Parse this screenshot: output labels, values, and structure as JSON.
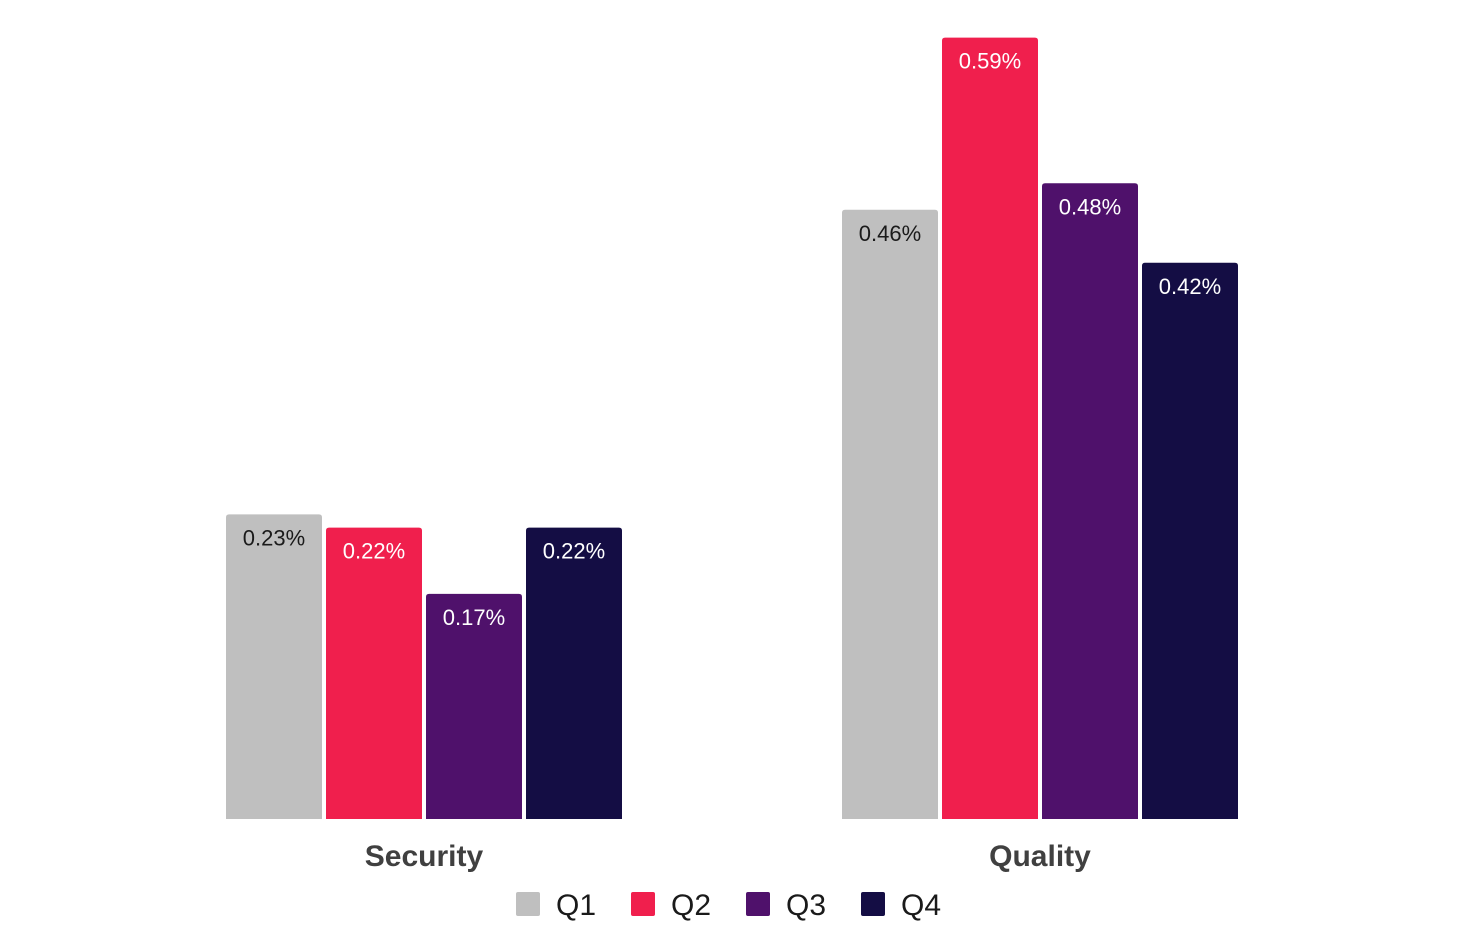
{
  "chart_data": {
    "type": "bar",
    "categories": [
      "Security",
      "Quality"
    ],
    "series": [
      {
        "name": "Q1",
        "values": [
          0.23,
          0.46
        ],
        "labels": [
          "0.23%",
          "0.46%"
        ],
        "color": "#bfbfbf",
        "label_color": "#1a1a1a"
      },
      {
        "name": "Q2",
        "values": [
          0.22,
          0.59
        ],
        "labels": [
          "0.22%",
          "0.59%"
        ],
        "color": "#f01f4d",
        "label_color": "#ffffff"
      },
      {
        "name": "Q3",
        "values": [
          0.17,
          0.48
        ],
        "labels": [
          "0.17%",
          "0.48%"
        ],
        "color": "#4f116b",
        "label_color": "#ffffff"
      },
      {
        "name": "Q4",
        "values": [
          0.22,
          0.42
        ],
        "labels": [
          "0.22%",
          "0.42%"
        ],
        "color": "#140d44",
        "label_color": "#ffffff"
      }
    ],
    "ylim": [
      0,
      0.595
    ],
    "grid": false,
    "legend": "bottom-center",
    "title": "",
    "xlabel": "",
    "ylabel": ""
  }
}
